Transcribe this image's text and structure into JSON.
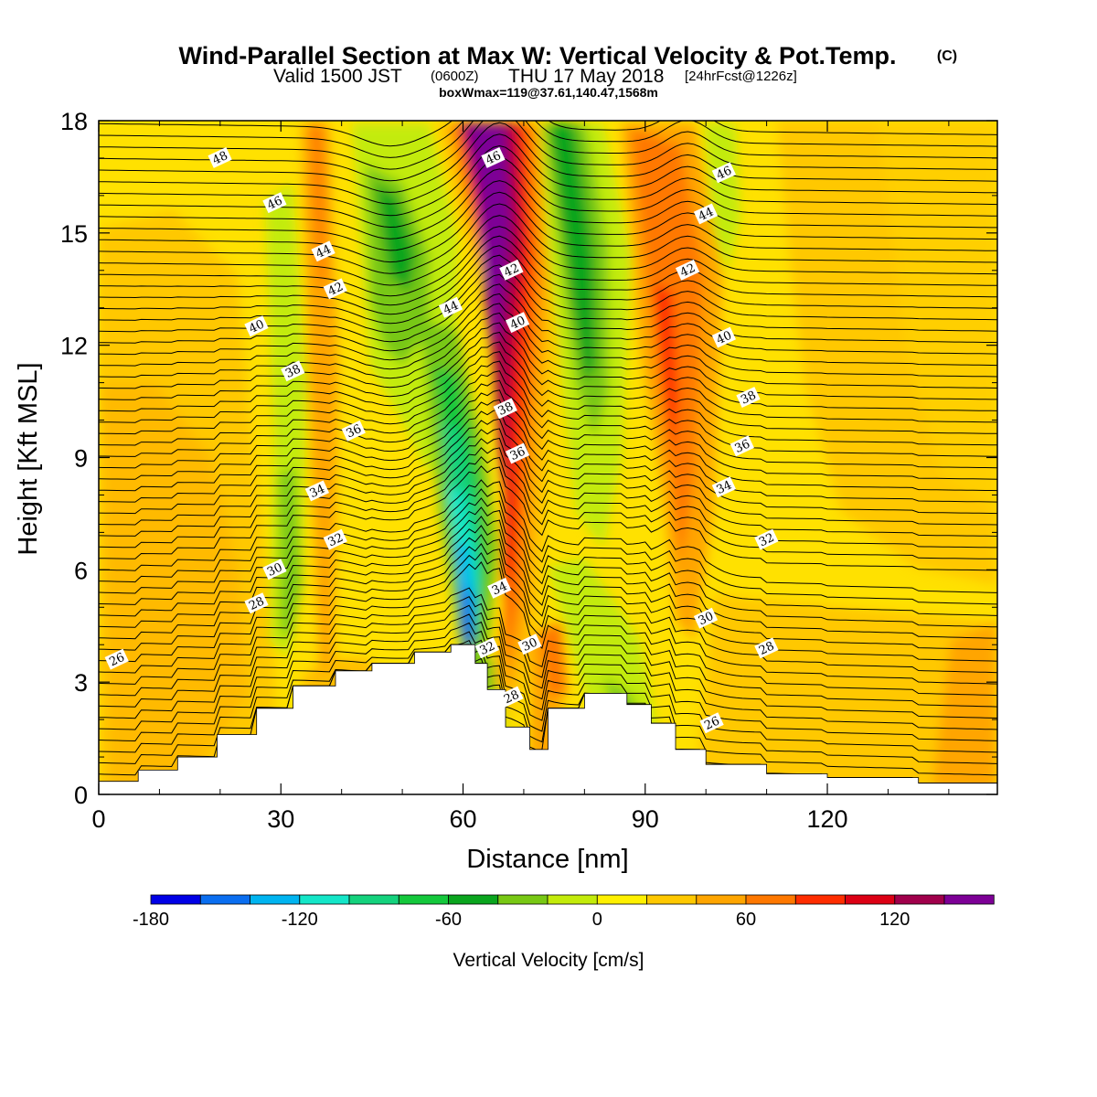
{
  "title": {
    "main": "Wind-Parallel Section at Max W: Vertical Velocity & Pot.Temp.",
    "copyright": "(C)",
    "valid_pre": "Valid 1500 JST",
    "valid_utc": "(0600Z)",
    "valid_post": "THU 17 May 2018",
    "forecast": "[24hrFcst@1226z]",
    "boxw": "boxWmax=119@37.61,140.47,1568m"
  },
  "chart_data": {
    "type": "heatmap",
    "xlabel": "Distance [nm]",
    "ylabel": "Height [Kft MSL]",
    "xlim": [
      0,
      148
    ],
    "ylim": [
      0,
      18
    ],
    "x_ticks": [
      "0",
      "30",
      "60",
      "90",
      "120"
    ],
    "y_ticks": [
      "0",
      "3",
      "6",
      "9",
      "12",
      "15",
      "18"
    ],
    "colorbar": {
      "label": "Vertical Velocity [cm/s]",
      "min": -180,
      "max": 140,
      "step": 20,
      "tick_labels": [
        "-180",
        "-120",
        "-60",
        "0",
        "60",
        "120"
      ],
      "colors": [
        "#0000e6",
        "#0a6ef0",
        "#00b4f0",
        "#14e6c8",
        "#14d27d",
        "#14c83c",
        "#0aa51e",
        "#78c814",
        "#c3eb0a",
        "#fff000",
        "#ffc800",
        "#ffa500",
        "#ff7800",
        "#ff2d00",
        "#dc0014",
        "#a0004b",
        "#7d0096"
      ]
    },
    "terrain_kft": [
      [
        0,
        0.35
      ],
      [
        6.5,
        0.35
      ],
      [
        6.5,
        0.65
      ],
      [
        13,
        0.65
      ],
      [
        13,
        1.0
      ],
      [
        19.5,
        1.0
      ],
      [
        19.5,
        1.6
      ],
      [
        26,
        1.6
      ],
      [
        26,
        2.3
      ],
      [
        32,
        2.3
      ],
      [
        32,
        2.9
      ],
      [
        39,
        2.9
      ],
      [
        39,
        3.3
      ],
      [
        45,
        3.3
      ],
      [
        45,
        3.5
      ],
      [
        52,
        3.5
      ],
      [
        52,
        3.8
      ],
      [
        58,
        3.8
      ],
      [
        58,
        4.0
      ],
      [
        62,
        4.0
      ],
      [
        62,
        3.5
      ],
      [
        64,
        3.5
      ],
      [
        64,
        2.8
      ],
      [
        67,
        2.8
      ],
      [
        67,
        1.8
      ],
      [
        71,
        1.8
      ],
      [
        71,
        1.2
      ],
      [
        74,
        1.2
      ],
      [
        74,
        2.3
      ],
      [
        80,
        2.3
      ],
      [
        80,
        2.7
      ],
      [
        87,
        2.7
      ],
      [
        87,
        2.4
      ],
      [
        91,
        2.4
      ],
      [
        91,
        1.9
      ],
      [
        95,
        1.9
      ],
      [
        95,
        1.2
      ],
      [
        100,
        1.2
      ],
      [
        100,
        0.8
      ],
      [
        110,
        0.8
      ],
      [
        110,
        0.55
      ],
      [
        120,
        0.55
      ],
      [
        120,
        0.45
      ],
      [
        135,
        0.45
      ],
      [
        135,
        0.3
      ],
      [
        148,
        0.3
      ]
    ],
    "theta_labels": [
      {
        "v": "48",
        "x": 20,
        "y": 17.0
      },
      {
        "v": "46",
        "x": 29,
        "y": 15.8
      },
      {
        "v": "44",
        "x": 37,
        "y": 14.5
      },
      {
        "v": "42",
        "x": 39,
        "y": 13.5
      },
      {
        "v": "40",
        "x": 26,
        "y": 12.5
      },
      {
        "v": "38",
        "x": 32,
        "y": 11.3
      },
      {
        "v": "36",
        "x": 42,
        "y": 9.7
      },
      {
        "v": "34",
        "x": 36,
        "y": 8.1
      },
      {
        "v": "32",
        "x": 39,
        "y": 6.8
      },
      {
        "v": "30",
        "x": 29,
        "y": 6.0
      },
      {
        "v": "28",
        "x": 26,
        "y": 5.1
      },
      {
        "v": "26",
        "x": 3,
        "y": 3.6
      },
      {
        "v": "44",
        "x": 58,
        "y": 13.0
      },
      {
        "v": "46",
        "x": 65,
        "y": 17.0
      },
      {
        "v": "42",
        "x": 68,
        "y": 14.0
      },
      {
        "v": "40",
        "x": 69,
        "y": 12.6
      },
      {
        "v": "38",
        "x": 67,
        "y": 10.3
      },
      {
        "v": "36",
        "x": 69,
        "y": 9.1
      },
      {
        "v": "34",
        "x": 66,
        "y": 5.5
      },
      {
        "v": "32",
        "x": 64,
        "y": 3.9
      },
      {
        "v": "30",
        "x": 71,
        "y": 4.0
      },
      {
        "v": "28",
        "x": 68,
        "y": 2.6
      },
      {
        "v": "46",
        "x": 103,
        "y": 16.6
      },
      {
        "v": "44",
        "x": 100,
        "y": 15.5
      },
      {
        "v": "42",
        "x": 97,
        "y": 14.0
      },
      {
        "v": "40",
        "x": 103,
        "y": 12.2
      },
      {
        "v": "38",
        "x": 107,
        "y": 10.6
      },
      {
        "v": "36",
        "x": 106,
        "y": 9.3
      },
      {
        "v": "34",
        "x": 103,
        "y": 8.2
      },
      {
        "v": "32",
        "x": 110,
        "y": 6.8
      },
      {
        "v": "30",
        "x": 100,
        "y": 4.7
      },
      {
        "v": "28",
        "x": 110,
        "y": 3.9
      },
      {
        "v": "26",
        "x": 101,
        "y": 1.9
      }
    ]
  }
}
